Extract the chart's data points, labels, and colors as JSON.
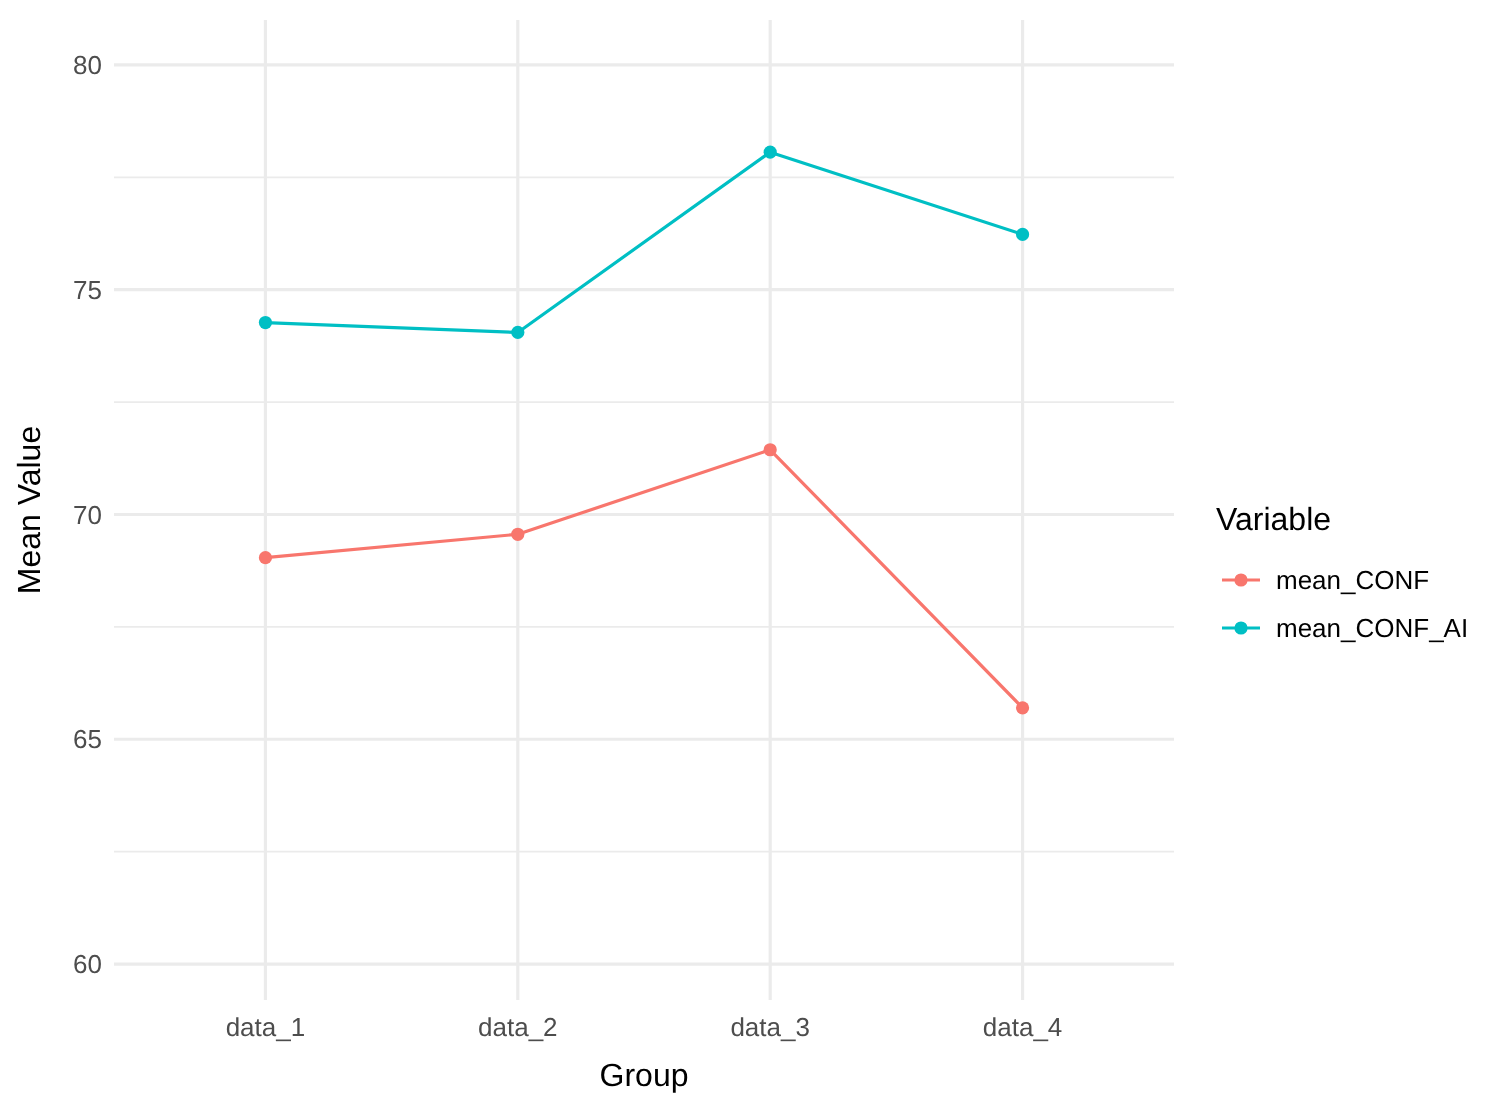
{
  "chart_data": {
    "type": "line",
    "xlabel": "Group",
    "ylabel": "Mean Value",
    "legend_title": "Variable",
    "categories": [
      "data_1",
      "data_2",
      "data_3",
      "data_4"
    ],
    "series": [
      {
        "name": "mean_CONF",
        "color": "#f8766d",
        "values": [
          69.04,
          69.56,
          71.44,
          65.7
        ]
      },
      {
        "name": "mean_CONF_AI",
        "color": "#00bfc4",
        "values": [
          74.27,
          74.05,
          78.06,
          76.23
        ]
      }
    ],
    "ylim": [
      59.2,
      81
    ],
    "yticks": [
      60,
      {
        "value": 62.5,
        "label": null
      },
      65,
      {
        "value": 67.5,
        "label": null
      },
      70,
      {
        "value": 72.5,
        "label": null
      },
      75,
      {
        "value": 77.5,
        "label": null
      },
      80
    ],
    "grid": true,
    "legend": "right",
    "marker": "circle",
    "line_style": "solid"
  }
}
